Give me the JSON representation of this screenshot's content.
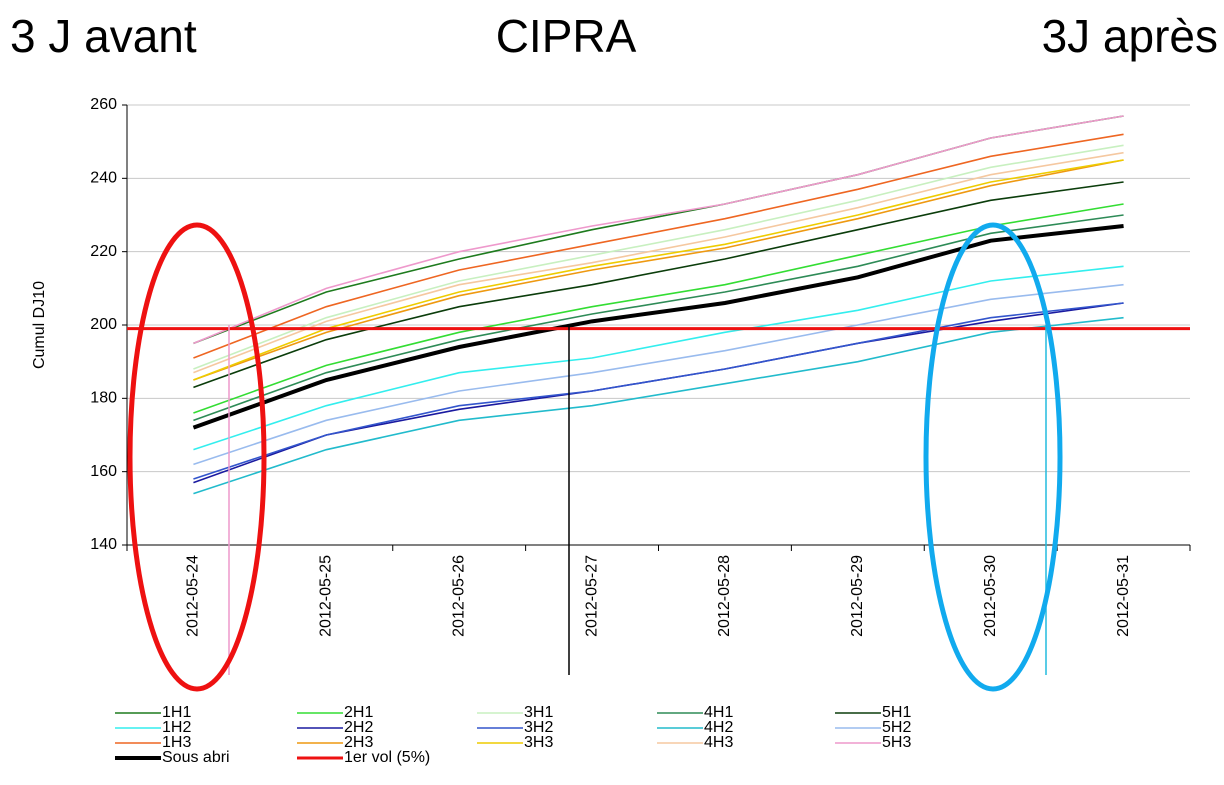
{
  "chart_data": {
    "type": "line",
    "title": "CIPRA",
    "annotations": [
      "3 J avant",
      "3J après"
    ],
    "ylabel": "Cumul DJ10",
    "categories": [
      "2012-05-24",
      "2012-05-25",
      "2012-05-26",
      "2012-05-27",
      "2012-05-28",
      "2012-05-29",
      "2012-05-30",
      "2012-05-31"
    ],
    "ylim": [
      140,
      260
    ],
    "yticks": [
      140,
      160,
      180,
      200,
      220,
      240,
      260
    ],
    "grid": true,
    "legend": "bottom",
    "series": [
      {
        "name": "1H1",
        "color": "#1e7b1e",
        "values": [
          195,
          209,
          218,
          226,
          233,
          241,
          251,
          257
        ]
      },
      {
        "name": "2H1",
        "color": "#33dd33",
        "values": [
          176,
          189,
          198,
          205,
          211,
          219,
          227,
          233
        ]
      },
      {
        "name": "3H1",
        "color": "#c8f0c0",
        "values": [
          188,
          202,
          212,
          219,
          226,
          234,
          243,
          249
        ]
      },
      {
        "name": "4H1",
        "color": "#2e8b57",
        "values": [
          174,
          187,
          196,
          203,
          209,
          216,
          225,
          230
        ]
      },
      {
        "name": "5H1",
        "color": "#0b3d0b",
        "values": [
          183,
          196,
          205,
          211,
          218,
          226,
          234,
          239
        ]
      },
      {
        "name": "1H2",
        "color": "#33eeee",
        "values": [
          166,
          178,
          187,
          191,
          198,
          204,
          212,
          216
        ]
      },
      {
        "name": "2H2",
        "color": "#1a1aa0",
        "values": [
          157,
          170,
          177,
          182,
          188,
          195,
          201,
          206
        ]
      },
      {
        "name": "3H2",
        "color": "#3355cc",
        "values": [
          158,
          170,
          178,
          182,
          188,
          195,
          202,
          206
        ]
      },
      {
        "name": "4H2",
        "color": "#22bbcc",
        "values": [
          154,
          166,
          174,
          178,
          184,
          190,
          198,
          202
        ]
      },
      {
        "name": "5H2",
        "color": "#99bbee",
        "values": [
          162,
          174,
          182,
          187,
          193,
          200,
          207,
          211
        ]
      },
      {
        "name": "1H3",
        "color": "#ee6622",
        "values": [
          191,
          205,
          215,
          222,
          229,
          237,
          246,
          252
        ]
      },
      {
        "name": "2H3",
        "color": "#ee9911",
        "values": [
          185,
          198,
          208,
          215,
          221,
          229,
          238,
          245
        ]
      },
      {
        "name": "3H3",
        "color": "#eecc00",
        "values": [
          185,
          199,
          209,
          216,
          222,
          230,
          239,
          245
        ]
      },
      {
        "name": "4H3",
        "color": "#f5c8a0",
        "values": [
          187,
          201,
          211,
          217,
          224,
          232,
          241,
          247
        ]
      },
      {
        "name": "5H3",
        "color": "#ee99cc",
        "values": [
          195,
          210,
          220,
          227,
          233,
          241,
          251,
          257
        ]
      },
      {
        "name": "Sous abri",
        "color": "#000000",
        "width": 4,
        "values": [
          172,
          185,
          194,
          201,
          206,
          213,
          223,
          227
        ]
      }
    ],
    "threshold": {
      "name": "1er vol (5%)",
      "color": "#ee1111",
      "value": 199
    }
  }
}
